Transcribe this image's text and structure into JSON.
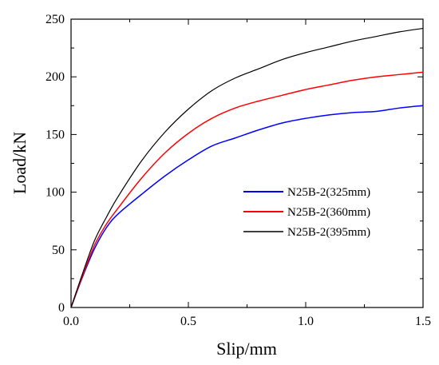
{
  "chart_data": {
    "type": "line",
    "xlabel": "Slip/mm",
    "ylabel": "Load/kN",
    "xlim": [
      0,
      1.5
    ],
    "ylim": [
      0,
      250
    ],
    "x_ticks": [
      "0.0",
      "0.5",
      "1.0",
      "1.5"
    ],
    "y_ticks": [
      "0",
      "50",
      "100",
      "150",
      "200",
      "250"
    ],
    "grid": false,
    "legend_position": "center-right",
    "series": [
      {
        "name": "N25B-2(325mm)",
        "color": "#0000ff",
        "x": [
          0,
          0.05,
          0.1,
          0.15,
          0.2,
          0.3,
          0.4,
          0.5,
          0.6,
          0.7,
          0.8,
          0.9,
          1.0,
          1.1,
          1.2,
          1.3,
          1.4,
          1.5
        ],
        "y": [
          0,
          27,
          51,
          69,
          81,
          98,
          114,
          128,
          140,
          147,
          154,
          160,
          164,
          167,
          169,
          170,
          173,
          175
        ]
      },
      {
        "name": "N25B-2(360mm)",
        "color": "#ff0000",
        "x": [
          0,
          0.05,
          0.1,
          0.15,
          0.2,
          0.3,
          0.4,
          0.5,
          0.6,
          0.7,
          0.8,
          0.9,
          1.0,
          1.1,
          1.2,
          1.3,
          1.4,
          1.5
        ],
        "y": [
          0,
          28,
          54,
          72,
          86,
          112,
          134,
          151,
          164,
          173,
          179,
          184,
          189,
          193,
          197,
          200,
          202,
          204
        ]
      },
      {
        "name": "N25B-2(395mm)",
        "color": "#000000",
        "x": [
          0,
          0.05,
          0.1,
          0.15,
          0.2,
          0.3,
          0.4,
          0.5,
          0.6,
          0.7,
          0.8,
          0.9,
          1.0,
          1.1,
          1.2,
          1.3,
          1.4,
          1.5
        ],
        "y": [
          0,
          30,
          58,
          78,
          96,
          127,
          152,
          172,
          188,
          199,
          207,
          215,
          221,
          226,
          231,
          235,
          239,
          242
        ]
      }
    ]
  }
}
